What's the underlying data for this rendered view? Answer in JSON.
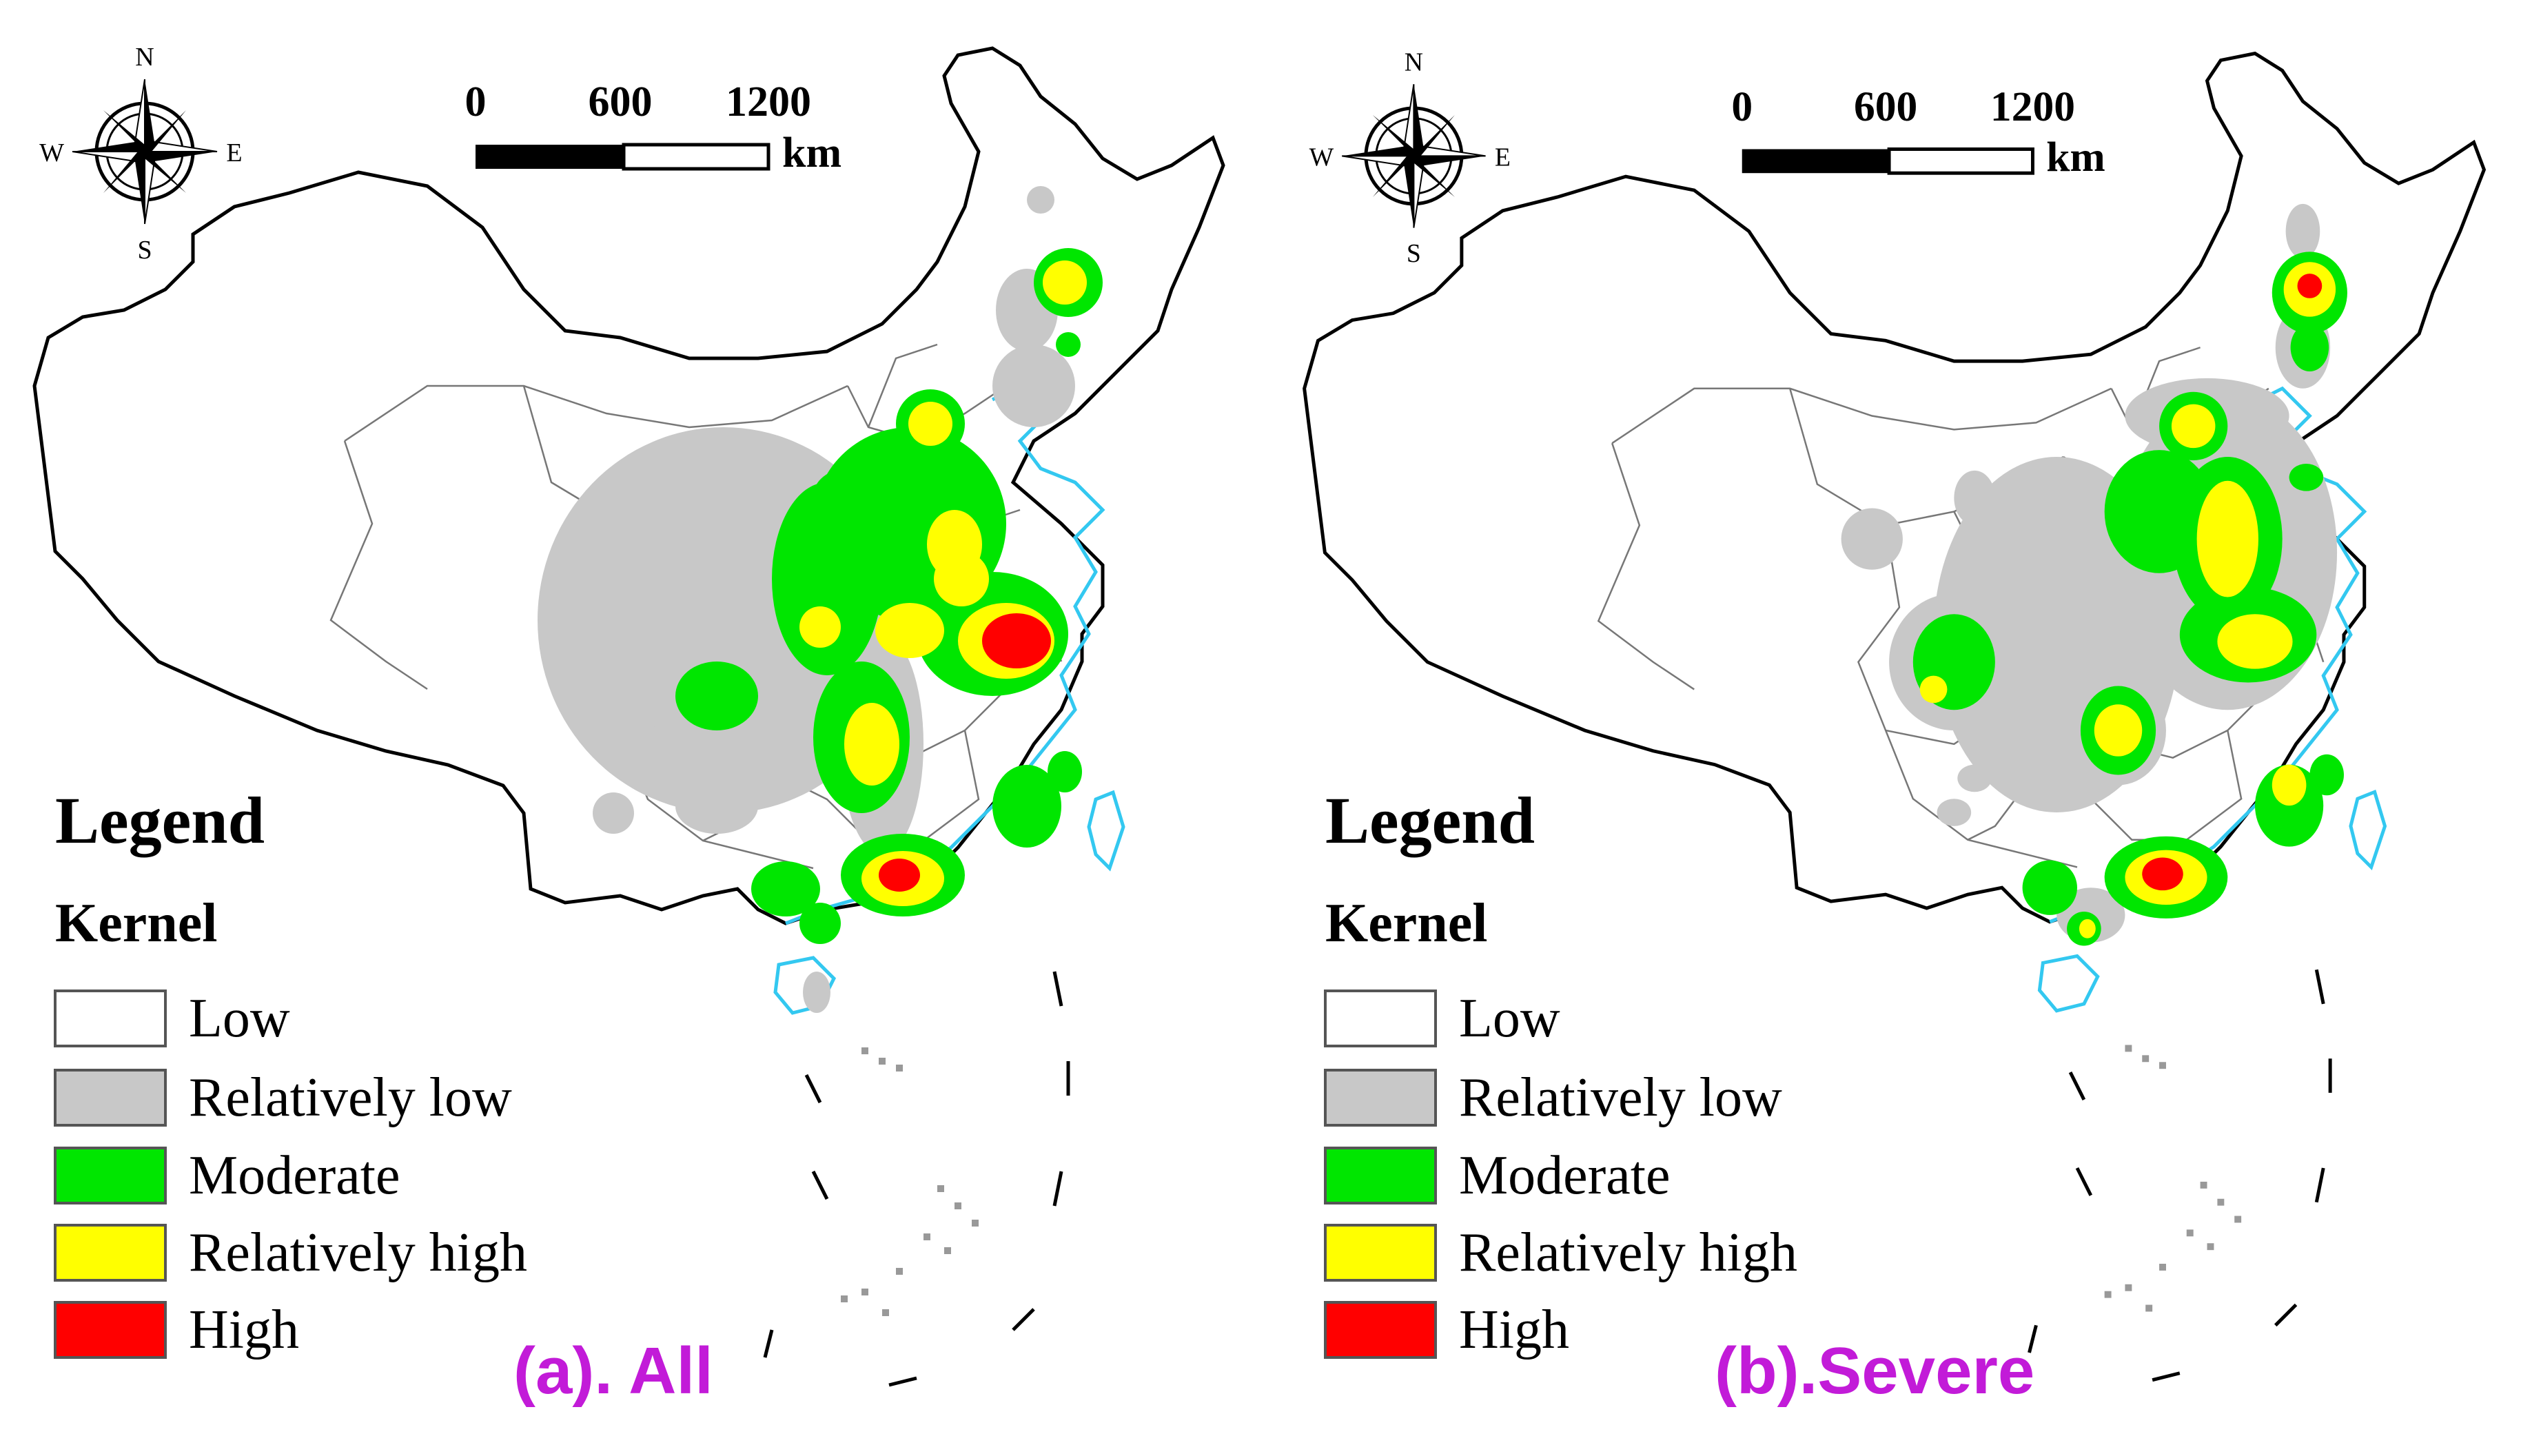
{
  "panels": [
    {
      "caption": "(a). All",
      "legend": {
        "title": "Legend",
        "subtitle": "Kernel",
        "items": [
          {
            "label": "Low",
            "color": "#ffffff"
          },
          {
            "label": "Relatively low",
            "color": "#c8c8c8"
          },
          {
            "label": "Moderate",
            "color": "#00e600"
          },
          {
            "label": "Relatively high",
            "color": "#ffff00"
          },
          {
            "label": "High",
            "color": "#ff0000"
          }
        ]
      },
      "scale_bar": {
        "ticks": [
          "0",
          "600",
          "1200"
        ],
        "unit": "km"
      },
      "compass": {
        "n": "N",
        "s": "S",
        "e": "E",
        "w": "W"
      }
    },
    {
      "caption": "(b).Severe",
      "legend": {
        "title": "Legend",
        "subtitle": "Kernel",
        "items": [
          {
            "label": "Low",
            "color": "#ffffff"
          },
          {
            "label": "Relatively low",
            "color": "#c8c8c8"
          },
          {
            "label": "Moderate",
            "color": "#00e600"
          },
          {
            "label": "Relatively high",
            "color": "#ffff00"
          },
          {
            "label": "High",
            "color": "#ff0000"
          }
        ]
      },
      "scale_bar": {
        "ticks": [
          "0",
          "600",
          "1200"
        ],
        "unit": "km"
      },
      "compass": {
        "n": "N",
        "s": "S",
        "e": "E",
        "w": "W"
      }
    }
  ],
  "colors": {
    "low": "#ffffff",
    "relatively_low": "#c8c8c8",
    "moderate": "#00e600",
    "relatively_high": "#ffff00",
    "high": "#ff0000",
    "coastline": "#33c8f0",
    "caption": "#c21bd8"
  }
}
